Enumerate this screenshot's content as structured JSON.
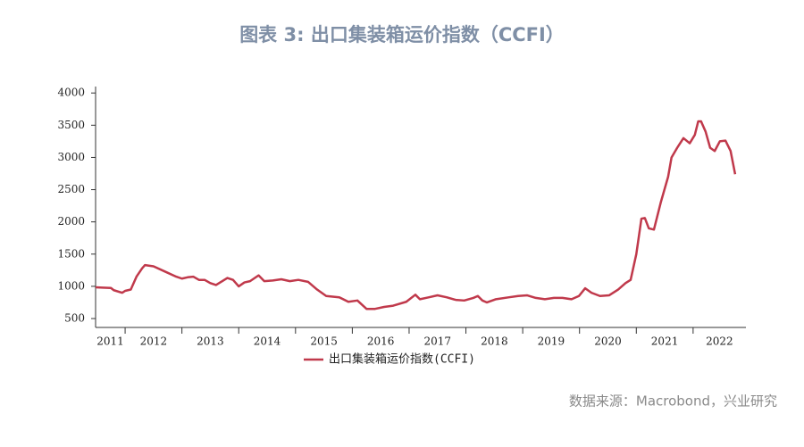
{
  "chart_data": {
    "type": "line",
    "title": "图表 3:     出口集装箱运价指数（CCFI）",
    "source": "数据来源：Macrobond，兴业研究",
    "x": [
      2011.48,
      2011.6,
      2011.75,
      2011.8,
      2011.95,
      2012.0,
      2012.1,
      2012.2,
      2012.3,
      2012.35,
      2012.5,
      2012.7,
      2012.9,
      2013.0,
      2013.1,
      2013.2,
      2013.3,
      2013.4,
      2013.5,
      2013.6,
      2013.8,
      2013.9,
      2014.0,
      2014.1,
      2014.2,
      2014.35,
      2014.45,
      2014.6,
      2014.75,
      2014.9,
      2015.05,
      2015.22,
      2015.38,
      2015.54,
      2015.77,
      2015.93,
      2016.09,
      2016.25,
      2016.4,
      2016.56,
      2016.72,
      2016.95,
      2017.11,
      2017.19,
      2017.35,
      2017.5,
      2017.66,
      2017.82,
      2017.97,
      2018.13,
      2018.21,
      2018.29,
      2018.37,
      2018.53,
      2018.76,
      2018.92,
      2019.08,
      2019.23,
      2019.39,
      2019.55,
      2019.7,
      2019.86,
      2019.99,
      2020.1,
      2020.21,
      2020.36,
      2020.52,
      2020.68,
      2020.81,
      2020.9,
      2021.0,
      2021.09,
      2021.15,
      2021.22,
      2021.31,
      2021.43,
      2021.56,
      2021.62,
      2021.72,
      2021.83,
      2021.94,
      2022.03,
      2022.09,
      2022.14,
      2022.22,
      2022.3,
      2022.38,
      2022.47,
      2022.57,
      2022.66,
      2022.74
    ],
    "series": [
      {
        "name": "出口集装箱运价指数(CCFI)",
        "color": "#c0394b",
        "values": [
          985,
          980,
          975,
          940,
          900,
          930,
          950,
          1150,
          1280,
          1330,
          1310,
          1230,
          1150,
          1120,
          1140,
          1150,
          1100,
          1100,
          1050,
          1020,
          1130,
          1100,
          1000,
          1060,
          1080,
          1170,
          1080,
          1090,
          1110,
          1080,
          1100,
          1070,
          950,
          850,
          830,
          760,
          780,
          650,
          650,
          680,
          700,
          760,
          870,
          800,
          830,
          860,
          830,
          790,
          780,
          820,
          850,
          780,
          750,
          800,
          830,
          850,
          860,
          820,
          800,
          820,
          820,
          800,
          850,
          970,
          900,
          850,
          860,
          950,
          1050,
          1100,
          1500,
          2050,
          2060,
          1900,
          1880,
          2300,
          2700,
          3000,
          3150,
          3300,
          3220,
          3350,
          3560,
          3560,
          3400,
          3150,
          3100,
          3250,
          3260,
          3100,
          2740
        ]
      }
    ],
    "xlim": [
      2011.48,
      2022.93
    ],
    "xticks": [
      2011,
      2012,
      2013,
      2014,
      2015,
      2016,
      2017,
      2018,
      2019,
      2020,
      2021,
      2022
    ],
    "ylim": [
      362,
      4100
    ],
    "yticks": [
      500,
      1000,
      1500,
      2000,
      2500,
      3000,
      3500,
      4000
    ],
    "grid": false
  }
}
